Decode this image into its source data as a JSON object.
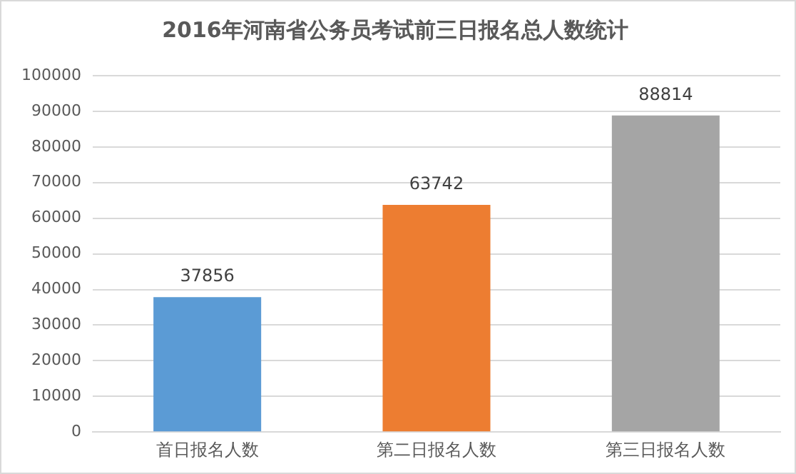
{
  "chart_data": {
    "type": "bar",
    "title": "2016年河南省公务员考试前三日报名总人数统计",
    "categories": [
      "首日报名人数",
      "第二日报名人数",
      "第三日报名人数"
    ],
    "values": [
      37856,
      63742,
      88814
    ],
    "colors": [
      "#5b9bd5",
      "#ed7d31",
      "#a5a5a5"
    ],
    "ylim": [
      0,
      100000
    ],
    "yticks": [
      0,
      10000,
      20000,
      30000,
      40000,
      50000,
      60000,
      70000,
      80000,
      90000,
      100000
    ],
    "grid": "y",
    "legend": false,
    "data_labels": true
  }
}
